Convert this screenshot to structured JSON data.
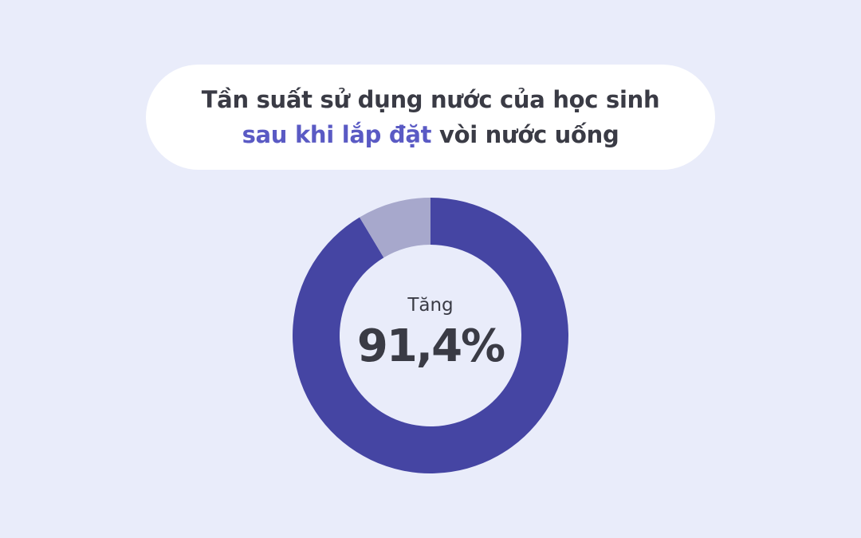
{
  "title": {
    "line1": "Tần suất sử dụng nước của học sinh",
    "line2_highlight": "sau khi lắp đặt",
    "line2_rest": " vòi nước uống"
  },
  "chart_data": {
    "type": "pie",
    "subtype": "donut",
    "center_label": "Tăng",
    "center_value": "91,4%",
    "slices": [
      {
        "value": 91.4,
        "color": "#4545a3"
      },
      {
        "value": 8.6,
        "color": "#a7a8cc"
      }
    ]
  },
  "colors": {
    "background": "#e9ecfa",
    "highlight": "#5a5ac4",
    "text": "#3a3b45"
  }
}
